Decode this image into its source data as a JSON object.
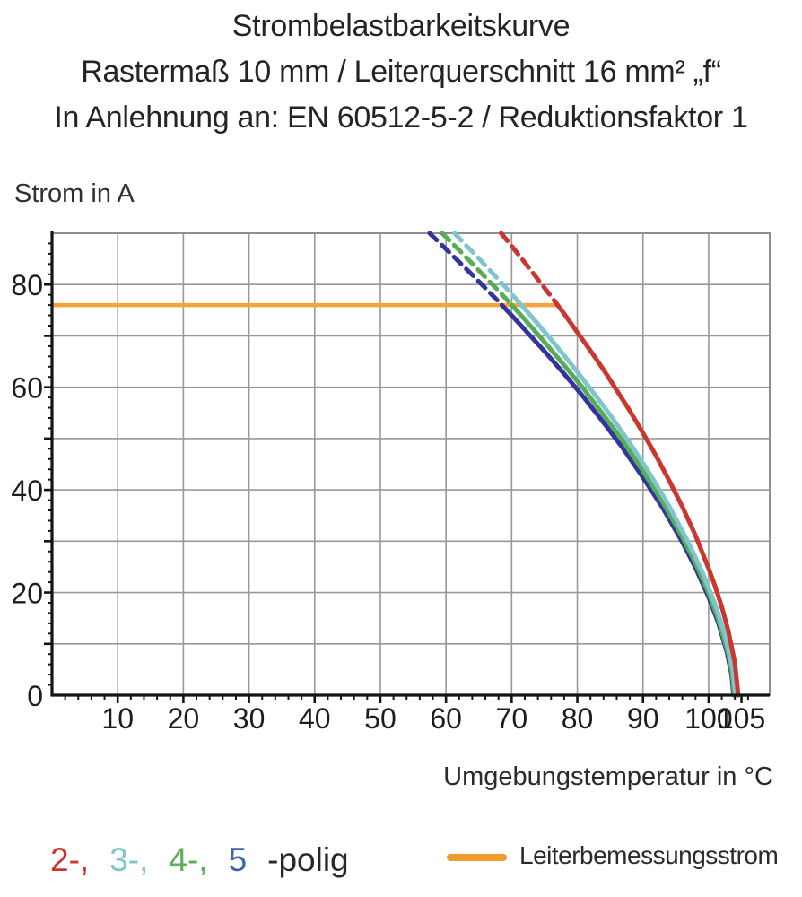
{
  "title": {
    "line1": "Strombelastbarkeitskurve",
    "line2": "Rastermaß 10 mm / Leiterquerschnitt 16 mm² „f“",
    "line3": "In Anlehnung an: EN 60512-5-2 / Reduktionsfaktor 1"
  },
  "chart_data": {
    "type": "line",
    "title": "Strombelastbarkeitskurve",
    "ylabel": "Strom in A",
    "xlabel": "Umgebungstemperatur in °C",
    "xlim": [
      0,
      109.3
    ],
    "ylim": [
      0,
      90
    ],
    "xticks": [
      10,
      20,
      30,
      40,
      50,
      60,
      70,
      80,
      90,
      100,
      105
    ],
    "yticks": [
      0,
      20,
      40,
      60,
      80
    ],
    "x_gridlines": [
      10,
      20,
      30,
      40,
      50,
      60,
      70,
      80,
      90,
      100
    ],
    "y_gridlines": [
      10,
      20,
      30,
      40,
      50,
      60,
      70,
      80
    ],
    "grid": true,
    "legend_position": "bottom",
    "rated_current_line": {
      "label": "Leiterbemessungsstrom",
      "value": 76,
      "x_start": 0,
      "x_end": 77,
      "color": "#f2a43e"
    },
    "series": [
      {
        "name": "5-polig",
        "color": "#34349e",
        "dashed_points": [
          [
            57.5,
            90
          ],
          [
            60,
            86.9
          ],
          [
            62,
            84.4
          ],
          [
            64,
            81.9
          ],
          [
            66,
            79.3
          ],
          [
            68,
            76.7
          ],
          [
            68.5,
            76
          ]
        ],
        "solid_points": [
          [
            68.5,
            76
          ],
          [
            70,
            74
          ],
          [
            72,
            71.2
          ],
          [
            75,
            67
          ],
          [
            78,
            62.6
          ],
          [
            81,
            58
          ],
          [
            84,
            53.1
          ],
          [
            87,
            48
          ],
          [
            90,
            42.4
          ],
          [
            93,
            36.5
          ],
          [
            96,
            29.8
          ],
          [
            98,
            24.8
          ],
          [
            100,
            19.1
          ],
          [
            101.5,
            14
          ],
          [
            102.8,
            8.3
          ],
          [
            103.5,
            4
          ],
          [
            103.8,
            0
          ]
        ]
      },
      {
        "name": "4-polig",
        "color": "#57ad57",
        "dashed_points": [
          [
            59.4,
            90
          ],
          [
            62,
            86.7
          ],
          [
            64,
            84.1
          ],
          [
            66,
            81.4
          ],
          [
            68,
            78.8
          ],
          [
            70,
            76
          ]
        ],
        "solid_points": [
          [
            70,
            76
          ],
          [
            72,
            73.2
          ],
          [
            75,
            68.8
          ],
          [
            78,
            64.3
          ],
          [
            81,
            59.6
          ],
          [
            84,
            54.6
          ],
          [
            87,
            49.4
          ],
          [
            90,
            43.7
          ],
          [
            93,
            37.6
          ],
          [
            96,
            30.8
          ],
          [
            98,
            25.7
          ],
          [
            100,
            19.9
          ],
          [
            101.5,
            14.7
          ],
          [
            103,
            8
          ],
          [
            103.6,
            4
          ],
          [
            103.9,
            0
          ]
        ]
      },
      {
        "name": "3-polig",
        "color": "#7fc6cc",
        "dashed_points": [
          [
            61.3,
            90
          ],
          [
            63,
            87.7
          ],
          [
            65,
            85.1
          ],
          [
            67,
            82.3
          ],
          [
            69,
            79.6
          ],
          [
            71,
            76.7
          ],
          [
            71.5,
            76
          ]
        ],
        "solid_points": [
          [
            71.5,
            76
          ],
          [
            73,
            73.8
          ],
          [
            76,
            69.3
          ],
          [
            79,
            64.6
          ],
          [
            82,
            59.7
          ],
          [
            85,
            54.6
          ],
          [
            88,
            49.1
          ],
          [
            91,
            43.2
          ],
          [
            94,
            36.8
          ],
          [
            97,
            29.5
          ],
          [
            99,
            24.1
          ],
          [
            101,
            17.7
          ],
          [
            102.5,
            11.7
          ],
          [
            103.7,
            5
          ],
          [
            104.1,
            0
          ]
        ]
      },
      {
        "name": "2-polig",
        "color": "#c8382e",
        "dashed_points": [
          [
            68.4,
            90
          ],
          [
            70,
            87.5
          ],
          [
            72,
            84.3
          ],
          [
            74,
            81
          ],
          [
            76,
            77.7
          ],
          [
            77,
            76
          ]
        ],
        "solid_points": [
          [
            77,
            76
          ],
          [
            78,
            74.3
          ],
          [
            80,
            70.7
          ],
          [
            82,
            67.1
          ],
          [
            84,
            63.4
          ],
          [
            86,
            59.4
          ],
          [
            88,
            55.4
          ],
          [
            90,
            51.1
          ],
          [
            92,
            46.6
          ],
          [
            94,
            41.8
          ],
          [
            96,
            36.7
          ],
          [
            98,
            31.1
          ],
          [
            100,
            24.7
          ],
          [
            101,
            21.2
          ],
          [
            102,
            17.2
          ],
          [
            103,
            12.5
          ],
          [
            104,
            6.3
          ],
          [
            104.5,
            0
          ]
        ]
      }
    ]
  },
  "legend": {
    "poles": [
      {
        "label": "2-,",
        "color": "#c8382e"
      },
      {
        "label": "3-,",
        "color": "#7fc6cc"
      },
      {
        "label": "4-,",
        "color": "#5fae5f"
      },
      {
        "label": "5",
        "color": "#3a66ac"
      }
    ],
    "poles_suffix": "-polig",
    "rated": {
      "label": "Leiterbemessungsstrom",
      "color": "#ee9d2c"
    }
  },
  "style": {
    "grid_color": "#989898",
    "frame_color": "#8f8f8f",
    "axis_color": "#141414"
  }
}
